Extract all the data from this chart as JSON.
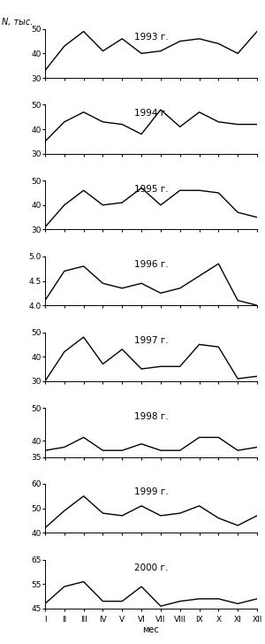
{
  "ylabel": "N, тыс.",
  "xlabel": "мес",
  "months": [
    "I",
    "II",
    "III",
    "IV",
    "V",
    "VI",
    "VII",
    "VIII",
    "IX",
    "X",
    "XI",
    "XII"
  ],
  "years": [
    {
      "year": "1993 г.",
      "data": [
        33,
        43,
        49,
        41,
        46,
        40,
        41,
        45,
        46,
        44,
        40,
        49
      ],
      "ylim": [
        30,
        50
      ],
      "yticks": [
        30,
        40,
        50
      ]
    },
    {
      "year": "1994 г.",
      "data": [
        35,
        43,
        47,
        43,
        42,
        38,
        48,
        41,
        47,
        43,
        42,
        42
      ],
      "ylim": [
        30,
        50
      ],
      "yticks": [
        30,
        40,
        50
      ]
    },
    {
      "year": "1995 г.",
      "data": [
        31,
        40,
        46,
        40,
        41,
        47,
        40,
        46,
        46,
        45,
        37,
        35
      ],
      "ylim": [
        30,
        50
      ],
      "yticks": [
        30,
        40,
        50
      ]
    },
    {
      "year": "1996 г.",
      "data": [
        4.1,
        4.7,
        4.8,
        4.45,
        4.35,
        4.45,
        4.25,
        4.35,
        4.6,
        4.85,
        4.1,
        4.0
      ],
      "ylim": [
        4.0,
        5.0
      ],
      "yticks": [
        4.0,
        4.5,
        5.0
      ]
    },
    {
      "year": "1997 г.",
      "data": [
        30,
        42,
        48,
        37,
        43,
        35,
        36,
        36,
        45,
        44,
        31,
        32
      ],
      "ylim": [
        30,
        50
      ],
      "yticks": [
        30,
        40,
        50
      ]
    },
    {
      "year": "1998 г.",
      "data": [
        37,
        38,
        41,
        37,
        37,
        39,
        37,
        37,
        41,
        41,
        37,
        38
      ],
      "ylim": [
        35,
        50
      ],
      "yticks": [
        35,
        40,
        50
      ]
    },
    {
      "year": "1999 г.",
      "data": [
        42,
        49,
        55,
        48,
        47,
        51,
        47,
        48,
        51,
        46,
        43,
        47
      ],
      "ylim": [
        40,
        60
      ],
      "yticks": [
        40,
        50,
        60
      ]
    },
    {
      "year": "2000 г.",
      "data": [
        47,
        54,
        56,
        48,
        48,
        54,
        46,
        48,
        49,
        49,
        47,
        49
      ],
      "ylim": [
        45,
        65
      ],
      "yticks": [
        45,
        55,
        65
      ]
    }
  ],
  "line_color": "#000000",
  "bg_color": "#ffffff"
}
